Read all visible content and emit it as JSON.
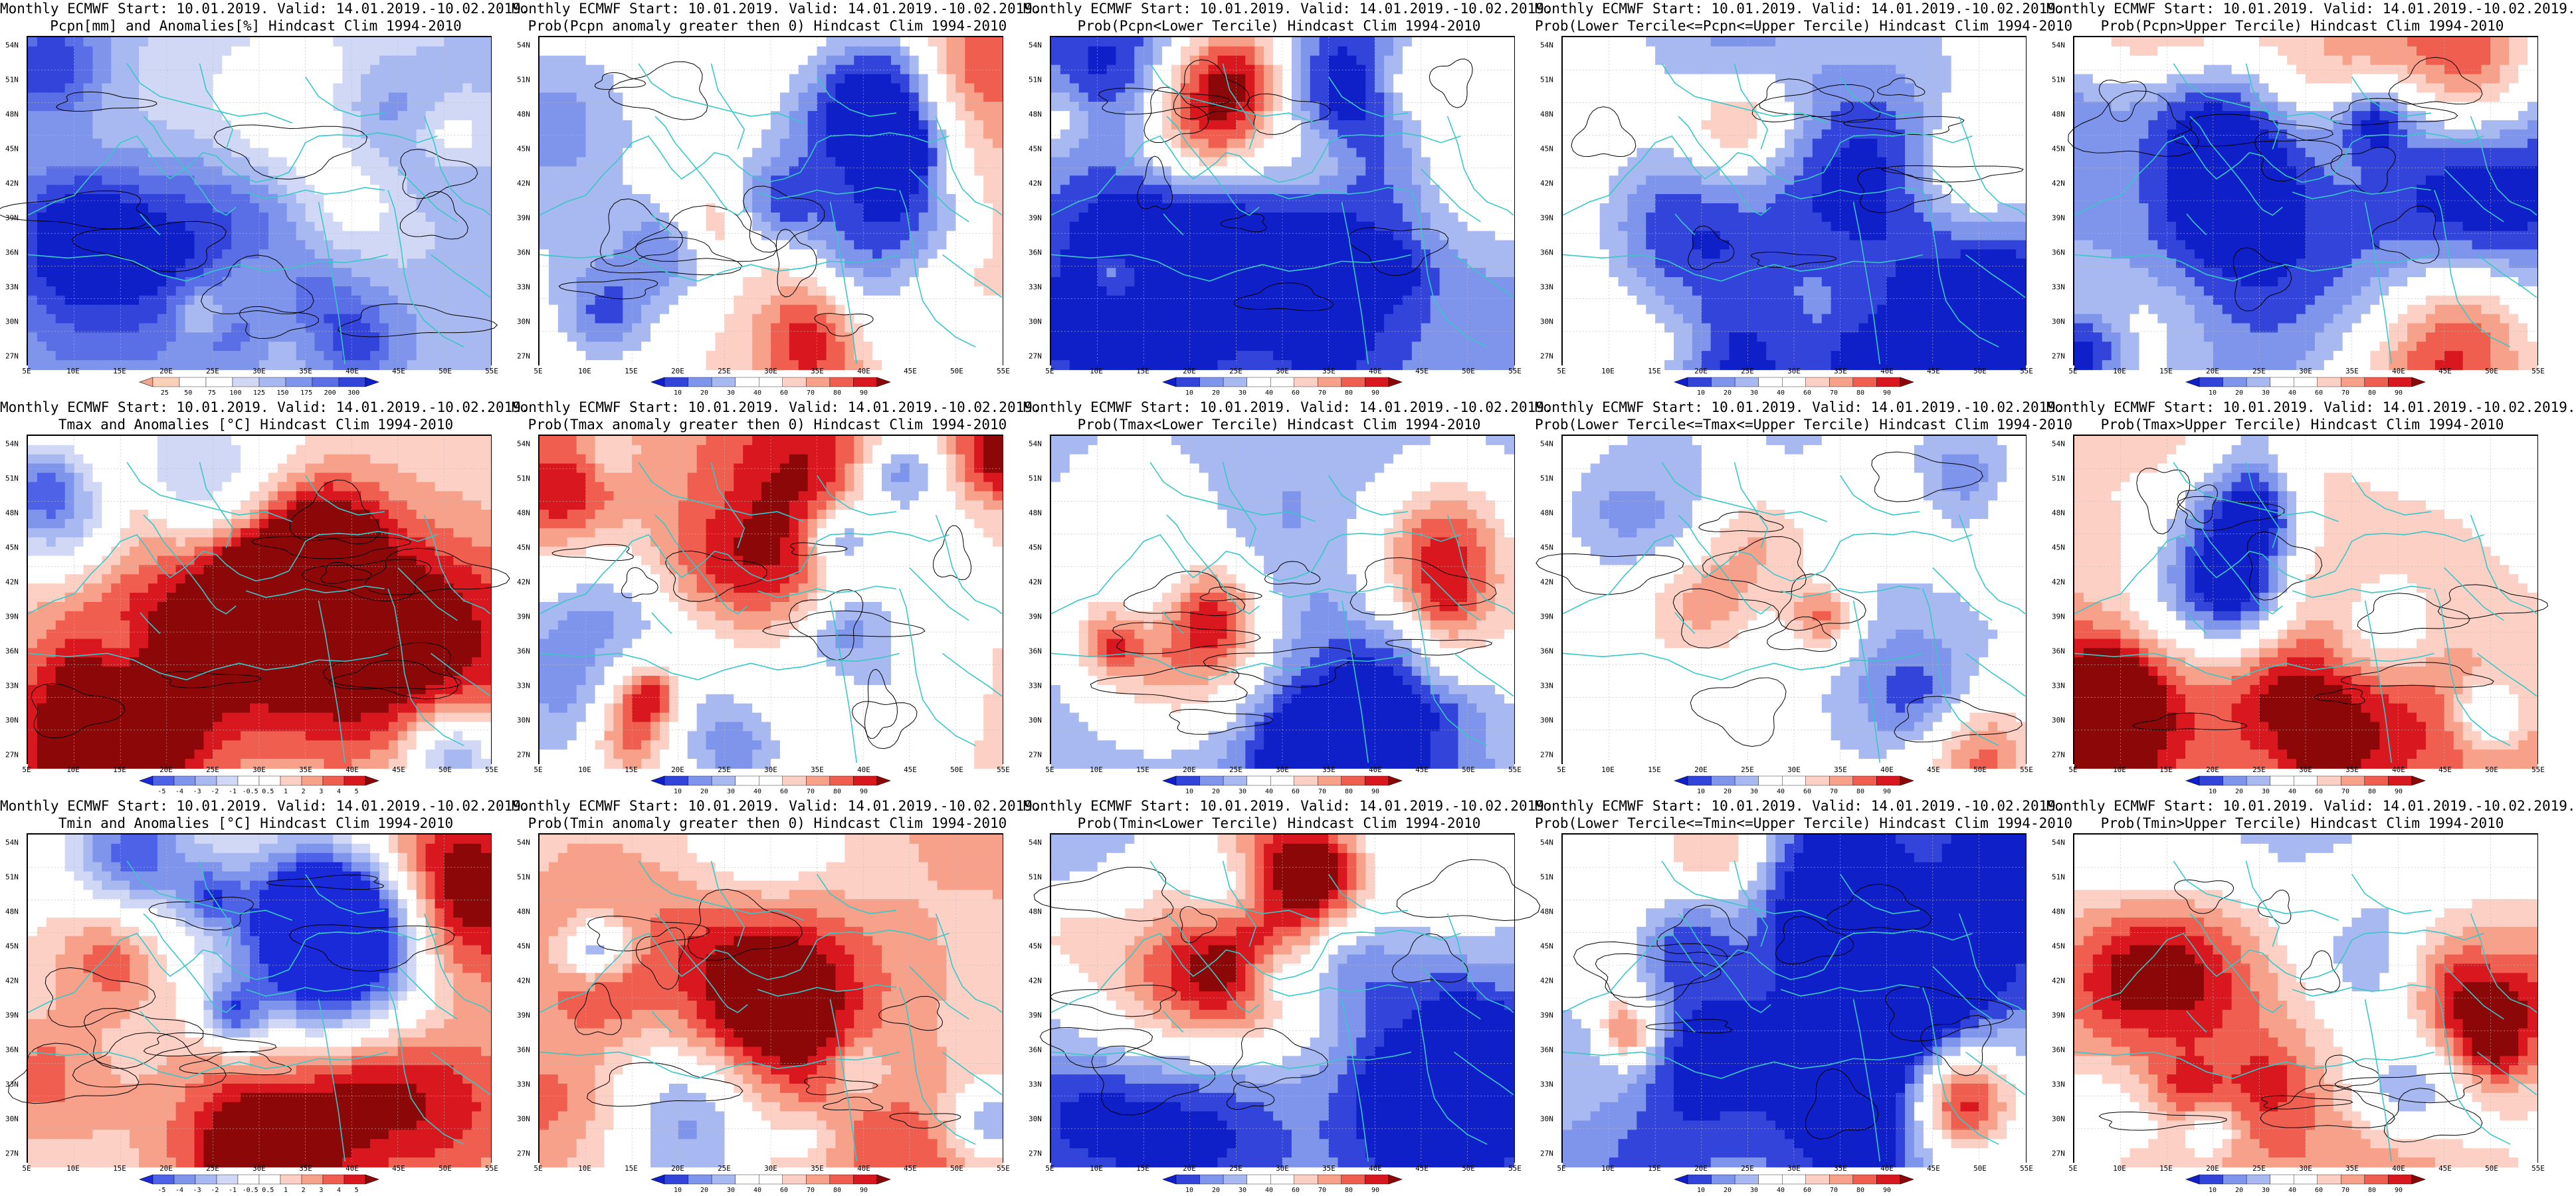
{
  "colors": {
    "coast": "#39c7c7",
    "contour": "#000000",
    "box": "#ffffff"
  },
  "lat_labels": [
    "54N",
    "51N",
    "48N",
    "45N",
    "42N",
    "39N",
    "36N",
    "33N",
    "30N",
    "27N"
  ],
  "lon_labels": [
    "5E",
    "10E",
    "15E",
    "20E",
    "25E",
    "30E",
    "35E",
    "40E",
    "45E",
    "50E",
    "55E"
  ],
  "scales": {
    "anom_pcpn": {
      "colors": [
        "#f2a58d",
        "#fccfb9",
        "#ffffff",
        "#ffffff",
        "#d0d8f5",
        "#a8b8f0",
        "#7f95eb",
        "#5a6ee6",
        "#3244d9",
        "#1020c8"
      ],
      "labels": [
        "25",
        "50",
        "75",
        "100",
        "125",
        "150",
        "175",
        "200",
        "300"
      ],
      "reverse": true
    },
    "anom_t": {
      "colors": [
        "#1a2ad8",
        "#4d62e6",
        "#7f95eb",
        "#a8b8f0",
        "#d0d8f5",
        "#ffffff",
        "#ffffff",
        "#fcd0c4",
        "#f7a08a",
        "#ef5e4e",
        "#d8181e",
        "#8c0808"
      ],
      "labels": [
        "-5",
        "-4",
        "-3",
        "-2",
        "-1",
        "-0.5",
        "0.5",
        "1",
        "2",
        "3",
        "4",
        "5"
      ]
    },
    "prob": {
      "colors": [
        "#1020c8",
        "#3244d9",
        "#7f95eb",
        "#a8b8f0",
        "#ffffff",
        "#ffffff",
        "#fcd0c4",
        "#f7a08a",
        "#ef5e4e",
        "#d8181e",
        "#8c0808"
      ],
      "labels": [
        "10",
        "20",
        "30",
        "40",
        "60",
        "70",
        "80",
        "90"
      ]
    }
  },
  "panels": [
    {
      "t1": "Monthly ECMWF Start: 10.01.2019. Valid: 14.01.2019.-10.02.2019.",
      "t2": "Pcpn[mm] and Anomalies[%] Hindcast Clim 1994-2010",
      "scale": "anom_pcpn",
      "bias": 0.05,
      "seed": 11
    },
    {
      "t1": "Monthly ECMWF Start: 10.01.2019. Valid: 14.01.2019.-10.02.2019.",
      "t2": "Prob(Pcpn anomaly greater then 0) Hindcast Clim 1994-2010",
      "scale": "prob",
      "bias": 0.0,
      "seed": 12
    },
    {
      "t1": "Monthly ECMWF Start: 10.01.2019. Valid: 14.01.2019.-10.02.2019.",
      "t2": "Prob(Pcpn<Lower Tercile) Hindcast Clim 1994-2010",
      "scale": "prob",
      "bias": -0.55,
      "seed": 13
    },
    {
      "t1": "Monthly ECMWF Start: 10.01.2019. Valid: 14.01.2019.-10.02.2019.",
      "t2": "Prob(Lower Tercile<=Pcpn<=Upper Tercile) Hindcast Clim 1994-2010",
      "scale": "prob",
      "bias": -0.3,
      "seed": 14
    },
    {
      "t1": "Monthly ECMWF Start: 10.01.2019. Valid: 14.01.2019.-10.02.2019.",
      "t2": "Prob(Pcpn>Upper Tercile) Hindcast Clim 1994-2010",
      "scale": "prob",
      "bias": -0.1,
      "seed": 15
    },
    {
      "t1": "Monthly ECMWF Start: 10.01.2019. Valid: 14.01.2019.-10.02.2019.",
      "t2": "Tmax and Anomalies [°C] Hindcast Clim 1994-2010",
      "scale": "anom_t",
      "bias": 0.25,
      "seed": 21
    },
    {
      "t1": "Monthly ECMWF Start: 10.01.2019. Valid: 14.01.2019.-10.02.2019.",
      "t2": "Prob(Tmax anomaly greater then 0) Hindcast Clim 1994-2010",
      "scale": "prob",
      "bias": 0.25,
      "seed": 22
    },
    {
      "t1": "Monthly ECMWF Start: 10.01.2019. Valid: 14.01.2019.-10.02.2019.",
      "t2": "Prob(Tmax<Lower Tercile) Hindcast Clim 1994-2010",
      "scale": "prob",
      "bias": -0.55,
      "seed": 23
    },
    {
      "t1": "Monthly ECMWF Start: 10.01.2019. Valid: 14.01.2019.-10.02.2019.",
      "t2": "Prob(Lower Tercile<=Tmax<=Upper Tercile) Hindcast Clim 1994-2010",
      "scale": "prob",
      "bias": -0.3,
      "seed": 24
    },
    {
      "t1": "Monthly ECMWF Start: 10.01.2019. Valid: 14.01.2019.-10.02.2019.",
      "t2": "Prob(Tmax>Upper Tercile) Hindcast Clim 1994-2010",
      "scale": "prob",
      "bias": 0.05,
      "seed": 25
    },
    {
      "t1": "Monthly ECMWF Start: 10.01.2019. Valid: 14.01.2019.-10.02.2019.",
      "t2": "Tmin and Anomalies [°C] Hindcast Clim 1994-2010",
      "scale": "anom_t",
      "bias": 0.2,
      "seed": 31
    },
    {
      "t1": "Monthly ECMWF Start: 10.01.2019. Valid: 14.01.2019.-10.02.2019.",
      "t2": "Prob(Tmin anomaly greater then 0) Hindcast Clim 1994-2010",
      "scale": "prob",
      "bias": 0.3,
      "seed": 32
    },
    {
      "t1": "Monthly ECMWF Start: 10.01.2019. Valid: 14.01.2019.-10.02.2019.",
      "t2": "Prob(Tmin<Lower Tercile) Hindcast Clim 1994-2010",
      "scale": "prob",
      "bias": -0.55,
      "seed": 33
    },
    {
      "t1": "Monthly ECMWF Start: 10.01.2019. Valid: 14.01.2019.-10.02.2019.",
      "t2": "Prob(Lower Tercile<=Tmin<=Upper Tercile) Hindcast Clim 1994-2010",
      "scale": "prob",
      "bias": -0.3,
      "seed": 34
    },
    {
      "t1": "Monthly ECMWF Start: 10.01.2019. Valid: 14.01.2019.-10.02.2019.",
      "t2": "Prob(Tmin>Upper Tercile) Hindcast Clim 1994-2010",
      "scale": "prob",
      "bias": 0.0,
      "seed": 35
    }
  ]
}
